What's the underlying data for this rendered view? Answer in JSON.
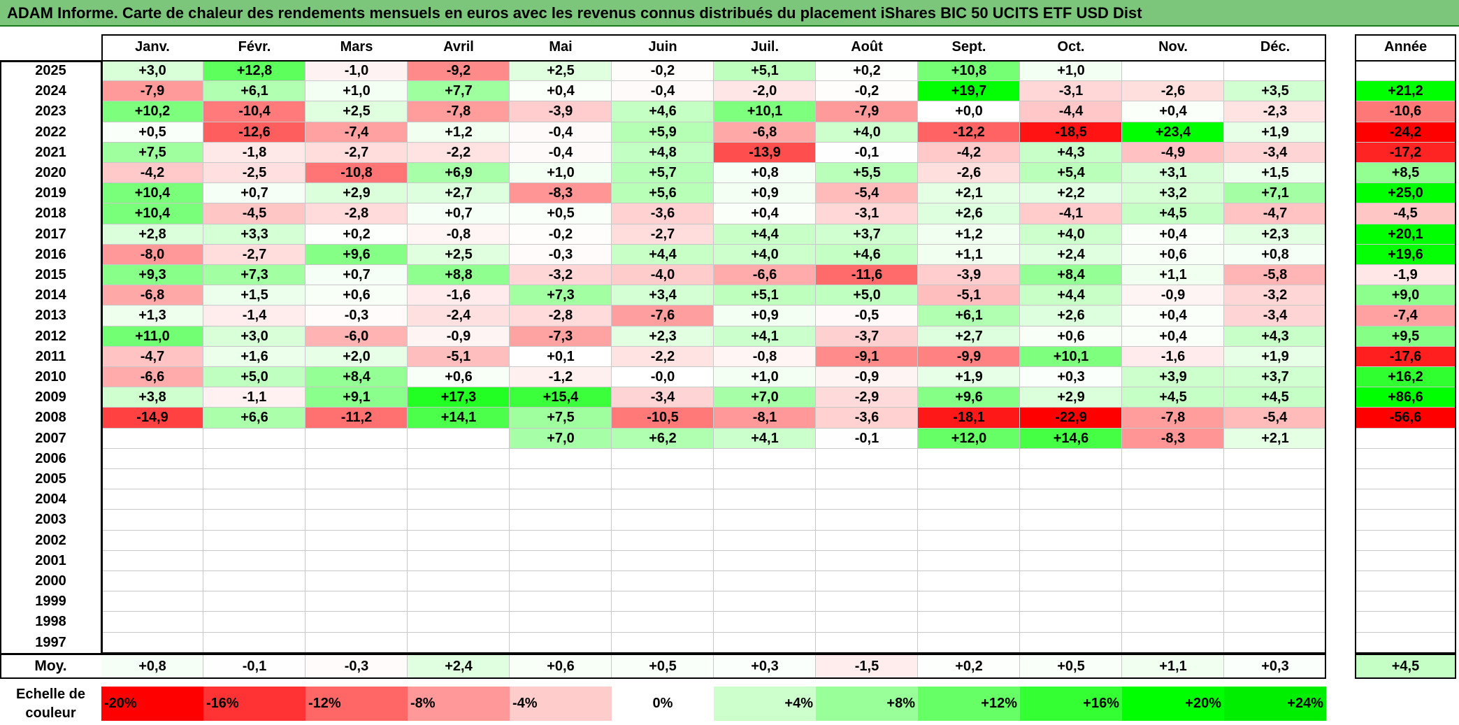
{
  "title": "ADAM Informe. Carte de chaleur des rendements mensuels en euros avec les revenus connus distribués du placement iShares BIC 50 UCITS ETF USD Dist",
  "chart_data": {
    "type": "heatmap",
    "months": [
      "Janv.",
      "Févr.",
      "Mars",
      "Avril",
      "Mai",
      "Juin",
      "Juil.",
      "Août",
      "Sept.",
      "Oct.",
      "Nov.",
      "Déc."
    ],
    "year_header": "Année",
    "rows": [
      {
        "year": "2025",
        "values": [
          "+3,0",
          "+12,8",
          "-1,0",
          "-9,2",
          "+2,5",
          "-0,2",
          "+5,1",
          "+0,2",
          "+10,8",
          "+1,0",
          "",
          ""
        ],
        "total": ""
      },
      {
        "year": "2024",
        "values": [
          "-7,9",
          "+6,1",
          "+1,0",
          "+7,7",
          "+0,4",
          "-0,4",
          "-2,0",
          "-0,2",
          "+19,7",
          "-3,1",
          "-2,6",
          "+3,5"
        ],
        "total": "+21,2"
      },
      {
        "year": "2023",
        "values": [
          "+10,2",
          "-10,4",
          "+2,5",
          "-7,8",
          "-3,9",
          "+4,6",
          "+10,1",
          "-7,9",
          "+0,0",
          "-4,4",
          "+0,4",
          "-2,3"
        ],
        "total": "-10,6"
      },
      {
        "year": "2022",
        "values": [
          "+0,5",
          "-12,6",
          "-7,4",
          "+1,2",
          "-0,4",
          "+5,9",
          "-6,8",
          "+4,0",
          "-12,2",
          "-18,5",
          "+23,4",
          "+1,9"
        ],
        "total": "-24,2"
      },
      {
        "year": "2021",
        "values": [
          "+7,5",
          "-1,8",
          "-2,7",
          "-2,2",
          "-0,4",
          "+4,8",
          "-13,9",
          "-0,1",
          "-4,2",
          "+4,3",
          "-4,9",
          "-3,4"
        ],
        "total": "-17,2"
      },
      {
        "year": "2020",
        "values": [
          "-4,2",
          "-2,5",
          "-10,8",
          "+6,9",
          "+1,0",
          "+5,7",
          "+0,8",
          "+5,5",
          "-2,6",
          "+5,4",
          "+3,1",
          "+1,5"
        ],
        "total": "+8,5"
      },
      {
        "year": "2019",
        "values": [
          "+10,4",
          "+0,7",
          "+2,9",
          "+2,7",
          "-8,3",
          "+5,6",
          "+0,9",
          "-5,4",
          "+2,1",
          "+2,2",
          "+3,2",
          "+7,1"
        ],
        "total": "+25,0"
      },
      {
        "year": "2018",
        "values": [
          "+10,4",
          "-4,5",
          "-2,8",
          "+0,7",
          "+0,5",
          "-3,6",
          "+0,4",
          "-3,1",
          "+2,6",
          "-4,1",
          "+4,5",
          "-4,7"
        ],
        "total": "-4,5"
      },
      {
        "year": "2017",
        "values": [
          "+2,8",
          "+3,3",
          "+0,2",
          "-0,8",
          "-0,2",
          "-2,7",
          "+4,4",
          "+3,7",
          "+1,2",
          "+4,0",
          "+0,4",
          "+2,3"
        ],
        "total": "+20,1"
      },
      {
        "year": "2016",
        "values": [
          "-8,0",
          "-2,7",
          "+9,6",
          "+2,5",
          "-0,3",
          "+4,4",
          "+4,0",
          "+4,6",
          "+1,1",
          "+2,4",
          "+0,6",
          "+0,8"
        ],
        "total": "+19,6"
      },
      {
        "year": "2015",
        "values": [
          "+9,3",
          "+7,3",
          "+0,7",
          "+8,8",
          "-3,2",
          "-4,0",
          "-6,6",
          "-11,6",
          "-3,9",
          "+8,4",
          "+1,1",
          "-5,8"
        ],
        "total": "-1,9"
      },
      {
        "year": "2014",
        "values": [
          "-6,8",
          "+1,5",
          "+0,6",
          "-1,6",
          "+7,3",
          "+3,4",
          "+5,1",
          "+5,0",
          "-5,1",
          "+4,4",
          "-0,9",
          "-3,2"
        ],
        "total": "+9,0"
      },
      {
        "year": "2013",
        "values": [
          "+1,3",
          "-1,4",
          "-0,3",
          "-2,4",
          "-2,8",
          "-7,6",
          "+0,9",
          "-0,5",
          "+6,1",
          "+2,6",
          "+0,4",
          "-3,4"
        ],
        "total": "-7,4"
      },
      {
        "year": "2012",
        "values": [
          "+11,0",
          "+3,0",
          "-6,0",
          "-0,9",
          "-7,3",
          "+2,3",
          "+4,1",
          "-3,7",
          "+2,7",
          "+0,6",
          "+0,4",
          "+4,3"
        ],
        "total": "+9,5"
      },
      {
        "year": "2011",
        "values": [
          "-4,7",
          "+1,6",
          "+2,0",
          "-5,1",
          "+0,1",
          "-2,2",
          "-0,8",
          "-9,1",
          "-9,9",
          "+10,1",
          "-1,6",
          "+1,9"
        ],
        "total": "-17,6"
      },
      {
        "year": "2010",
        "values": [
          "-6,6",
          "+5,0",
          "+8,4",
          "+0,6",
          "-1,2",
          "-0,0",
          "+1,0",
          "-0,9",
          "+1,9",
          "+0,3",
          "+3,9",
          "+3,7"
        ],
        "total": "+16,2"
      },
      {
        "year": "2009",
        "values": [
          "+3,8",
          "-1,1",
          "+9,1",
          "+17,3",
          "+15,4",
          "-3,4",
          "+7,0",
          "-2,9",
          "+9,6",
          "+2,9",
          "+4,5",
          "+4,5"
        ],
        "total": "+86,6"
      },
      {
        "year": "2008",
        "values": [
          "-14,9",
          "+6,6",
          "-11,2",
          "+14,1",
          "+7,5",
          "-10,5",
          "-8,1",
          "-3,6",
          "-18,1",
          "-22,9",
          "-7,8",
          "-5,4"
        ],
        "total": "-56,6"
      },
      {
        "year": "2007",
        "values": [
          "",
          "",
          "",
          "",
          "+7,0",
          "+6,2",
          "+4,1",
          "-0,1",
          "+12,0",
          "+14,6",
          "-8,3",
          "+2,1"
        ],
        "total": ""
      },
      {
        "year": "2006",
        "values": [
          "",
          "",
          "",
          "",
          "",
          "",
          "",
          "",
          "",
          "",
          "",
          ""
        ],
        "total": ""
      },
      {
        "year": "2005",
        "values": [
          "",
          "",
          "",
          "",
          "",
          "",
          "",
          "",
          "",
          "",
          "",
          ""
        ],
        "total": ""
      },
      {
        "year": "2004",
        "values": [
          "",
          "",
          "",
          "",
          "",
          "",
          "",
          "",
          "",
          "",
          "",
          ""
        ],
        "total": ""
      },
      {
        "year": "2003",
        "values": [
          "",
          "",
          "",
          "",
          "",
          "",
          "",
          "",
          "",
          "",
          "",
          ""
        ],
        "total": ""
      },
      {
        "year": "2002",
        "values": [
          "",
          "",
          "",
          "",
          "",
          "",
          "",
          "",
          "",
          "",
          "",
          ""
        ],
        "total": ""
      },
      {
        "year": "2001",
        "values": [
          "",
          "",
          "",
          "",
          "",
          "",
          "",
          "",
          "",
          "",
          "",
          ""
        ],
        "total": ""
      },
      {
        "year": "2000",
        "values": [
          "",
          "",
          "",
          "",
          "",
          "",
          "",
          "",
          "",
          "",
          "",
          ""
        ],
        "total": ""
      },
      {
        "year": "1999",
        "values": [
          "",
          "",
          "",
          "",
          "",
          "",
          "",
          "",
          "",
          "",
          "",
          ""
        ],
        "total": ""
      },
      {
        "year": "1998",
        "values": [
          "",
          "",
          "",
          "",
          "",
          "",
          "",
          "",
          "",
          "",
          "",
          ""
        ],
        "total": ""
      },
      {
        "year": "1997",
        "values": [
          "",
          "",
          "",
          "",
          "",
          "",
          "",
          "",
          "",
          "",
          "",
          ""
        ],
        "total": ""
      }
    ],
    "average": {
      "label": "Moy.",
      "values": [
        "+0,8",
        "-0,1",
        "-0,3",
        "+2,4",
        "+0,6",
        "+0,5",
        "+0,3",
        "-1,5",
        "+0,2",
        "+0,5",
        "+1,1",
        "+0,3"
      ],
      "total": "+4,5"
    },
    "color_scale": {
      "label": "Echelle de couleur",
      "stops": [
        {
          "label": "-20%",
          "color": "#ff0000"
        },
        {
          "label": "-16%",
          "color": "#ff3333"
        },
        {
          "label": "-12%",
          "color": "#ff6666"
        },
        {
          "label": "-8%",
          "color": "#ff9999"
        },
        {
          "label": "-4%",
          "color": "#ffcccc"
        },
        {
          "label": "0%",
          "color": "#ffffff"
        },
        {
          "label": "+4%",
          "color": "#ccffcc"
        },
        {
          "label": "+8%",
          "color": "#99ff99"
        },
        {
          "label": "+12%",
          "color": "#66ff66"
        },
        {
          "label": "+16%",
          "color": "#33ff33"
        },
        {
          "label": "+20%",
          "color": "#00ff00"
        },
        {
          "label": "+24%",
          "color": "#00ee00"
        }
      ]
    }
  }
}
